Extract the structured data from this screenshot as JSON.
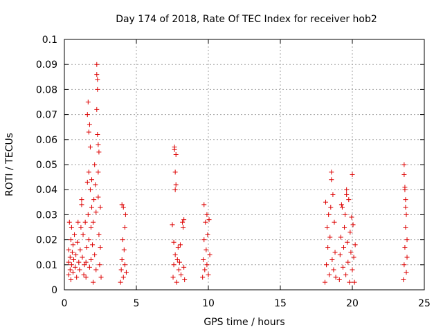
{
  "chart_data": {
    "type": "scatter",
    "title": "Day 174 of 2018, Rate Of TEC Index for receiver hob2",
    "xlabel": "GPS time / hours",
    "ylabel": "ROTI / TECUs",
    "xlim": [
      0,
      25
    ],
    "ylim": [
      0,
      0.1
    ],
    "x_ticks": [
      "0",
      "5",
      "10",
      "15",
      "20",
      "25"
    ],
    "y_ticks": [
      "0",
      "0.01",
      "0.02",
      "0.03",
      "0.04",
      "0.05",
      "0.06",
      "0.07",
      "0.08",
      "0.09",
      "0.1"
    ],
    "grid": true,
    "marker": "plus",
    "color": "#dd0000",
    "series": [
      {
        "points": [
          [
            0.3,
            0.006
          ],
          [
            0.3,
            0.011
          ],
          [
            0.3,
            0.016
          ],
          [
            0.35,
            0.027
          ],
          [
            0.4,
            0.008
          ],
          [
            0.4,
            0.013
          ],
          [
            0.45,
            0.02
          ],
          [
            0.45,
            0.004
          ],
          [
            0.5,
            0.01
          ],
          [
            0.5,
            0.025
          ],
          [
            0.55,
            0.015
          ],
          [
            0.6,
            0.007
          ],
          [
            0.6,
            0.018
          ],
          [
            0.65,
            0.012
          ],
          [
            0.7,
            0.022
          ],
          [
            0.75,
            0.009
          ],
          [
            0.8,
            0.014
          ],
          [
            0.85,
            0.005
          ],
          [
            0.9,
            0.019
          ],
          [
            0.95,
            0.027
          ],
          [
            1.0,
            0.011
          ],
          [
            1.05,
            0.008
          ],
          [
            1.1,
            0.016
          ],
          [
            1.15,
            0.025
          ],
          [
            1.2,
            0.036
          ],
          [
            1.2,
            0.034
          ],
          [
            1.25,
            0.013
          ],
          [
            1.3,
            0.022
          ],
          [
            1.35,
            0.006
          ],
          [
            1.4,
            0.01
          ],
          [
            1.45,
            0.027
          ],
          [
            1.5,
            0.005
          ],
          [
            1.5,
            0.011
          ],
          [
            1.55,
            0.017
          ],
          [
            1.6,
            0.043
          ],
          [
            1.6,
            0.07
          ],
          [
            1.65,
            0.075
          ],
          [
            1.65,
            0.03
          ],
          [
            1.7,
            0.063
          ],
          [
            1.7,
            0.047
          ],
          [
            1.7,
            0.02
          ],
          [
            1.75,
            0.009
          ],
          [
            1.75,
            0.066
          ],
          [
            1.8,
            0.057
          ],
          [
            1.8,
            0.04
          ],
          [
            1.85,
            0.025
          ],
          [
            1.85,
            0.012
          ],
          [
            1.9,
            0.044
          ],
          [
            1.9,
            0.033
          ],
          [
            1.95,
            0.018
          ],
          [
            2.0,
            0.003
          ],
          [
            2.0,
            0.027
          ],
          [
            2.05,
            0.036
          ],
          [
            2.1,
            0.05
          ],
          [
            2.1,
            0.014
          ],
          [
            2.15,
            0.042
          ],
          [
            2.2,
            0.008
          ],
          [
            2.2,
            0.031
          ],
          [
            2.25,
            0.09
          ],
          [
            2.25,
            0.086
          ],
          [
            2.25,
            0.072
          ],
          [
            2.3,
            0.084
          ],
          [
            2.3,
            0.08
          ],
          [
            2.3,
            0.062
          ],
          [
            2.35,
            0.058
          ],
          [
            2.35,
            0.047
          ],
          [
            2.35,
            0.037
          ],
          [
            2.4,
            0.055
          ],
          [
            2.4,
            0.022
          ],
          [
            2.45,
            0.01
          ],
          [
            2.5,
            0.033
          ],
          [
            2.5,
            0.017
          ],
          [
            2.55,
            0.005
          ],
          [
            3.9,
            0.003
          ],
          [
            3.95,
            0.008
          ],
          [
            4.0,
            0.012
          ],
          [
            4.0,
            0.034
          ],
          [
            4.05,
            0.02
          ],
          [
            4.1,
            0.033
          ],
          [
            4.1,
            0.005
          ],
          [
            4.15,
            0.016
          ],
          [
            4.2,
            0.025
          ],
          [
            4.2,
            0.01
          ],
          [
            4.25,
            0.03
          ],
          [
            4.3,
            0.007
          ],
          [
            7.5,
            0.026
          ],
          [
            7.55,
            0.005
          ],
          [
            7.6,
            0.01
          ],
          [
            7.6,
            0.019
          ],
          [
            7.65,
            0.056
          ],
          [
            7.65,
            0.057
          ],
          [
            7.7,
            0.047
          ],
          [
            7.7,
            0.04
          ],
          [
            7.7,
            0.014
          ],
          [
            7.75,
            0.042
          ],
          [
            7.75,
            0.054
          ],
          [
            7.8,
            0.003
          ],
          [
            7.85,
            0.012
          ],
          [
            7.9,
            0.017
          ],
          [
            7.95,
            0.008
          ],
          [
            8.0,
            0.011
          ],
          [
            8.05,
            0.018
          ],
          [
            8.1,
            0.006
          ],
          [
            8.2,
            0.027
          ],
          [
            8.25,
            0.025
          ],
          [
            8.3,
            0.028
          ],
          [
            8.3,
            0.009
          ],
          [
            8.35,
            0.004
          ],
          [
            9.6,
            0.005
          ],
          [
            9.65,
            0.012
          ],
          [
            9.7,
            0.034
          ],
          [
            9.7,
            0.02
          ],
          [
            9.75,
            0.008
          ],
          [
            9.8,
            0.027
          ],
          [
            9.85,
            0.016
          ],
          [
            9.9,
            0.03
          ],
          [
            9.9,
            0.01
          ],
          [
            9.95,
            0.022
          ],
          [
            10.0,
            0.006
          ],
          [
            10.05,
            0.028
          ],
          [
            10.1,
            0.014
          ],
          [
            18.1,
            0.003
          ],
          [
            18.15,
            0.035
          ],
          [
            18.2,
            0.01
          ],
          [
            18.25,
            0.025
          ],
          [
            18.3,
            0.017
          ],
          [
            18.35,
            0.03
          ],
          [
            18.4,
            0.006
          ],
          [
            18.45,
            0.021
          ],
          [
            18.5,
            0.033
          ],
          [
            18.55,
            0.044
          ],
          [
            18.55,
            0.047
          ],
          [
            18.6,
            0.012
          ],
          [
            18.65,
            0.038
          ],
          [
            18.7,
            0.008
          ],
          [
            18.75,
            0.027
          ],
          [
            18.8,
            0.015
          ],
          [
            18.85,
            0.005
          ],
          [
            19.1,
            0.004
          ],
          [
            19.15,
            0.014
          ],
          [
            19.2,
            0.021
          ],
          [
            19.25,
            0.034
          ],
          [
            19.3,
            0.033
          ],
          [
            19.35,
            0.009
          ],
          [
            19.4,
            0.017
          ],
          [
            19.45,
            0.025
          ],
          [
            19.5,
            0.03
          ],
          [
            19.55,
            0.006
          ],
          [
            19.6,
            0.038
          ],
          [
            19.6,
            0.04
          ],
          [
            19.65,
            0.019
          ],
          [
            19.7,
            0.011
          ],
          [
            19.75,
            0.036
          ],
          [
            19.8,
            0.003
          ],
          [
            19.85,
            0.023
          ],
          [
            19.9,
            0.015
          ],
          [
            19.95,
            0.029
          ],
          [
            20.0,
            0.046
          ],
          [
            20.0,
            0.008
          ],
          [
            20.05,
            0.026
          ],
          [
            20.1,
            0.013
          ],
          [
            20.15,
            0.003
          ],
          [
            20.2,
            0.018
          ],
          [
            23.55,
            0.004
          ],
          [
            23.6,
            0.05
          ],
          [
            23.6,
            0.046
          ],
          [
            23.6,
            0.01
          ],
          [
            23.65,
            0.04
          ],
          [
            23.65,
            0.041
          ],
          [
            23.65,
            0.017
          ],
          [
            23.7,
            0.033
          ],
          [
            23.7,
            0.036
          ],
          [
            23.7,
            0.025
          ],
          [
            23.75,
            0.03
          ],
          [
            23.75,
            0.007
          ],
          [
            23.8,
            0.02
          ],
          [
            23.8,
            0.013
          ]
        ]
      }
    ]
  }
}
